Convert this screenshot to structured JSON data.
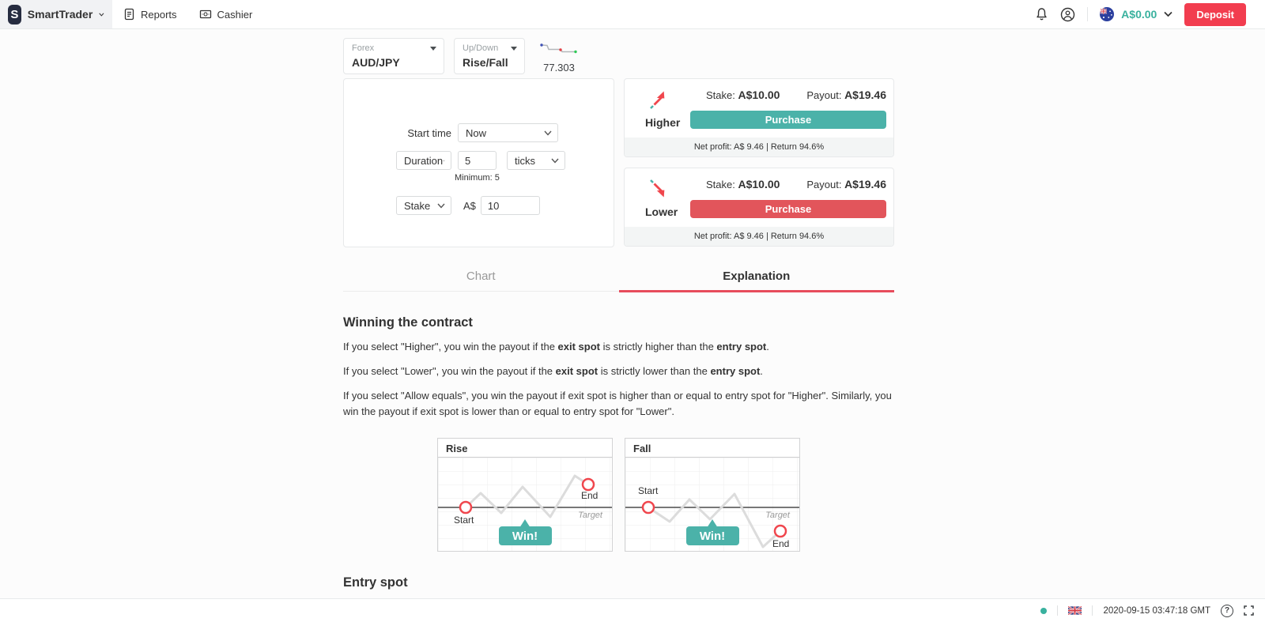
{
  "colors": {
    "accent_teal": "#4bb2a9",
    "balance_teal": "#39b19e",
    "lower_red": "#e2555b",
    "deposit_red": "#f23d4f",
    "tab_underline_red": "#e74c5c",
    "arrow_red": "#f0464d"
  },
  "header": {
    "logo_letter": "S",
    "brand_name": "SmartTrader",
    "nav": [
      {
        "label": "Reports"
      },
      {
        "label": "Cashier"
      }
    ],
    "balance": "A$0.00",
    "deposit_label": "Deposit"
  },
  "trade_setup": {
    "market": {
      "label": "Forex",
      "value": "AUD/JPY"
    },
    "trade_category": {
      "label": "Up/Down",
      "value": "Rise/Fall"
    },
    "spot_price": "77.303",
    "start_time_label": "Start time",
    "start_time_value": "Now",
    "duration_label": "Duration",
    "duration_value": "5",
    "duration_unit": "ticks",
    "duration_hint": "Minimum: 5",
    "stake_label": "Stake",
    "currency": "A$",
    "stake_value": "10"
  },
  "contracts": [
    {
      "direction": "Higher",
      "stake_label": "Stake:",
      "stake": "A$10.00",
      "payout_label": "Payout:",
      "payout": "A$19.46",
      "purchase": "Purchase",
      "net": "Net profit: A$ 9.46 | Return 94.6%"
    },
    {
      "direction": "Lower",
      "stake_label": "Stake:",
      "stake": "A$10.00",
      "payout_label": "Payout:",
      "payout": "A$19.46",
      "purchase": "Purchase",
      "net": "Net profit: A$ 9.46 | Return 94.6%"
    }
  ],
  "tabs": [
    {
      "label": "Chart"
    },
    {
      "label": "Explanation"
    }
  ],
  "explanation": {
    "heading": "Winning the contract",
    "paragraphs": [
      [
        {
          "t": "If you select \"Higher\", you win the payout if the "
        },
        {
          "t": "exit spot",
          "b": true
        },
        {
          "t": " is strictly higher than the "
        },
        {
          "t": "entry spot",
          "b": true
        },
        {
          "t": "."
        }
      ],
      [
        {
          "t": "If you select \"Lower\", you win the payout if the "
        },
        {
          "t": "exit spot",
          "b": true
        },
        {
          "t": " is strictly lower than the "
        },
        {
          "t": "entry spot",
          "b": true
        },
        {
          "t": "."
        }
      ],
      [
        {
          "t": "If you select \"Allow equals\", you win the payout if exit spot is higher than or equal to entry spot for \"Higher\". Similarly, you win the payout if exit spot is lower than or equal to entry spot for \"Lower\"."
        }
      ]
    ],
    "next_heading": "Entry spot"
  },
  "diagrams": [
    {
      "title": "Rise",
      "start": "Start",
      "end": "End",
      "target": "Target",
      "win": "Win!"
    },
    {
      "title": "Fall",
      "start": "Start",
      "end": "End",
      "target": "Target",
      "win": "Win!"
    }
  ],
  "footer": {
    "timestamp": "2020-09-15 03:47:18 GMT",
    "help_glyph": "?"
  }
}
